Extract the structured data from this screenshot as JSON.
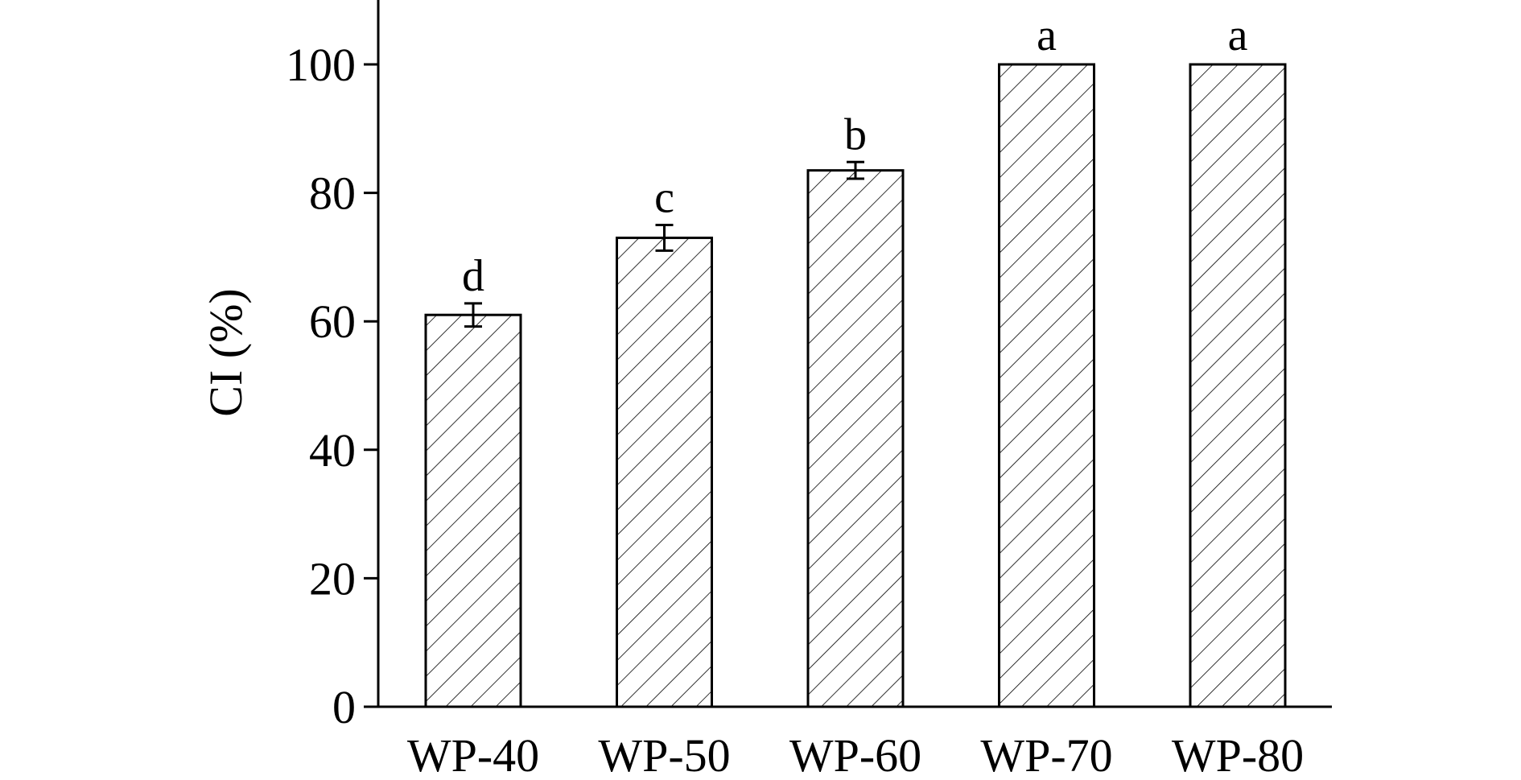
{
  "chart_data": {
    "type": "bar",
    "title": "",
    "xlabel": "",
    "ylabel": "CI (%)",
    "ylim": [
      0,
      110
    ],
    "yticks": [
      0,
      20,
      40,
      60,
      80,
      100
    ],
    "categories": [
      "WP-40",
      "WP-50",
      "WP-60",
      "WP-70",
      "WP-80"
    ],
    "values": [
      61,
      73,
      83.5,
      100,
      100
    ],
    "errors": [
      1.8,
      2.0,
      1.3,
      0,
      0
    ],
    "significance_letters": [
      "d",
      "c",
      "b",
      "a",
      "a"
    ],
    "bar_fill": "hatched diagonal",
    "bar_color": "#ffffff",
    "line_color": "#000000",
    "grid": false,
    "legend": "none"
  }
}
